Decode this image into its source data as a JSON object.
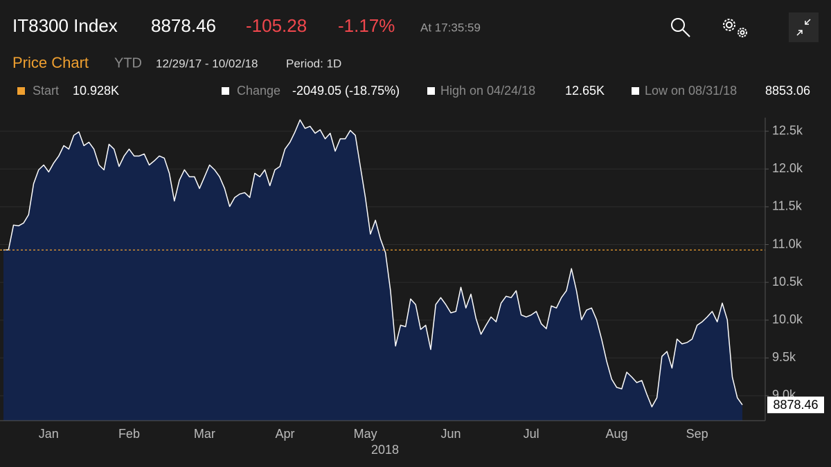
{
  "header": {
    "ticker": "IT8300 Index",
    "price": "8878.46",
    "change": "-105.28",
    "change_pct": "-1.17%",
    "time": "At 17:35:59"
  },
  "subheader": {
    "title": "Price Chart",
    "range": "YTD",
    "dates": "12/29/17 - 10/02/18",
    "period": "Period: 1D"
  },
  "stats": [
    {
      "label": "Start",
      "value": "10.928K"
    },
    {
      "label": "Change",
      "value": "-2049.05 (-18.75%)"
    },
    {
      "label": "High on 04/24/18",
      "value": "12.65K"
    },
    {
      "label": "Low on 08/31/18",
      "value": "8853.06"
    }
  ],
  "chart_data": {
    "type": "area",
    "xlabel": "2018",
    "categories": [
      null,
      null,
      null,
      null,
      null,
      null,
      null,
      null,
      null,
      "Jan",
      null,
      null,
      null,
      null,
      null,
      null,
      null,
      null,
      null,
      null,
      null,
      null,
      null,
      null,
      null,
      "Feb",
      null,
      null,
      null,
      null,
      null,
      null,
      null,
      null,
      null,
      null,
      null,
      null,
      null,
      null,
      "Mar",
      null,
      null,
      null,
      null,
      null,
      null,
      null,
      null,
      null,
      null,
      null,
      null,
      null,
      null,
      null,
      "Apr",
      null,
      null,
      null,
      null,
      null,
      null,
      null,
      null,
      null,
      null,
      null,
      null,
      null,
      null,
      null,
      "May",
      null,
      null,
      null,
      null,
      null,
      null,
      null,
      null,
      null,
      null,
      null,
      null,
      null,
      null,
      null,
      null,
      "Jun",
      null,
      null,
      null,
      null,
      null,
      null,
      null,
      null,
      null,
      null,
      null,
      null,
      null,
      null,
      null,
      "Jul",
      null,
      null,
      null,
      null,
      null,
      null,
      null,
      null,
      null,
      null,
      null,
      null,
      null,
      null,
      null,
      null,
      "Aug",
      null,
      null,
      null,
      null,
      null,
      null,
      null,
      null,
      null,
      null,
      null,
      null,
      null,
      null,
      null,
      "Sep",
      null,
      null,
      null,
      null,
      null,
      null,
      null,
      null,
      null
    ],
    "values": [
      10928,
      10930,
      11258,
      11248,
      11285,
      11395,
      11806,
      11989,
      12053,
      11961,
      12080,
      12172,
      12309,
      12263,
      12446,
      12491,
      12309,
      12354,
      12263,
      12053,
      11989,
      12327,
      12263,
      12034,
      12172,
      12263,
      12172,
      12172,
      12199,
      12053,
      12108,
      12172,
      12144,
      11943,
      11577,
      11852,
      11989,
      11897,
      11897,
      11742,
      11897,
      12053,
      11989,
      11897,
      11742,
      11504,
      11623,
      11669,
      11687,
      11623,
      11943,
      11897,
      11989,
      11779,
      11989,
      12034,
      12263,
      12354,
      12491,
      12650,
      12537,
      12565,
      12473,
      12519,
      12400,
      12473,
      12236,
      12400,
      12400,
      12510,
      12446,
      12034,
      11623,
      11139,
      11322,
      11075,
      10892,
      10389,
      9658,
      9932,
      9914,
      10280,
      10206,
      9877,
      9932,
      9612,
      10206,
      10298,
      10206,
      10097,
      10115,
      10435,
      10161,
      10344,
      10024,
      9813,
      9932,
      10042,
      9978,
      10225,
      10316,
      10298,
      10389,
      10069,
      10042,
      10069,
      10115,
      9951,
      9887,
      10188,
      10161,
      10298,
      10389,
      10682,
      10389,
      10005,
      10133,
      10161,
      10005,
      9749,
      9457,
      9219,
      9110,
      9091,
      9311,
      9247,
      9174,
      9201,
      9018,
      8853.06,
      8973,
      9521,
      9585,
      9366,
      9749,
      9686,
      9704,
      9749,
      9932,
      9978,
      10042,
      10115,
      9978,
      10225,
      10005,
      9247,
      8973,
      8878.46
    ],
    "start_line": 10928,
    "fill_color": "#13234a",
    "line_color": "#ffffff",
    "start_line_color": "#f0a030",
    "ylim": [
      8670,
      12680
    ],
    "yticks": [
      {
        "value": 9000,
        "label": "9.0k"
      },
      {
        "value": 9500,
        "label": "9.5k"
      },
      {
        "value": 10000,
        "label": "10.0k"
      },
      {
        "value": 10500,
        "label": "10.5k"
      },
      {
        "value": 11000,
        "label": "11.0k"
      },
      {
        "value": 11500,
        "label": "11.5k"
      },
      {
        "value": 12000,
        "label": "12.0k"
      },
      {
        "value": 12500,
        "label": "12.5k"
      }
    ],
    "grid": true
  }
}
